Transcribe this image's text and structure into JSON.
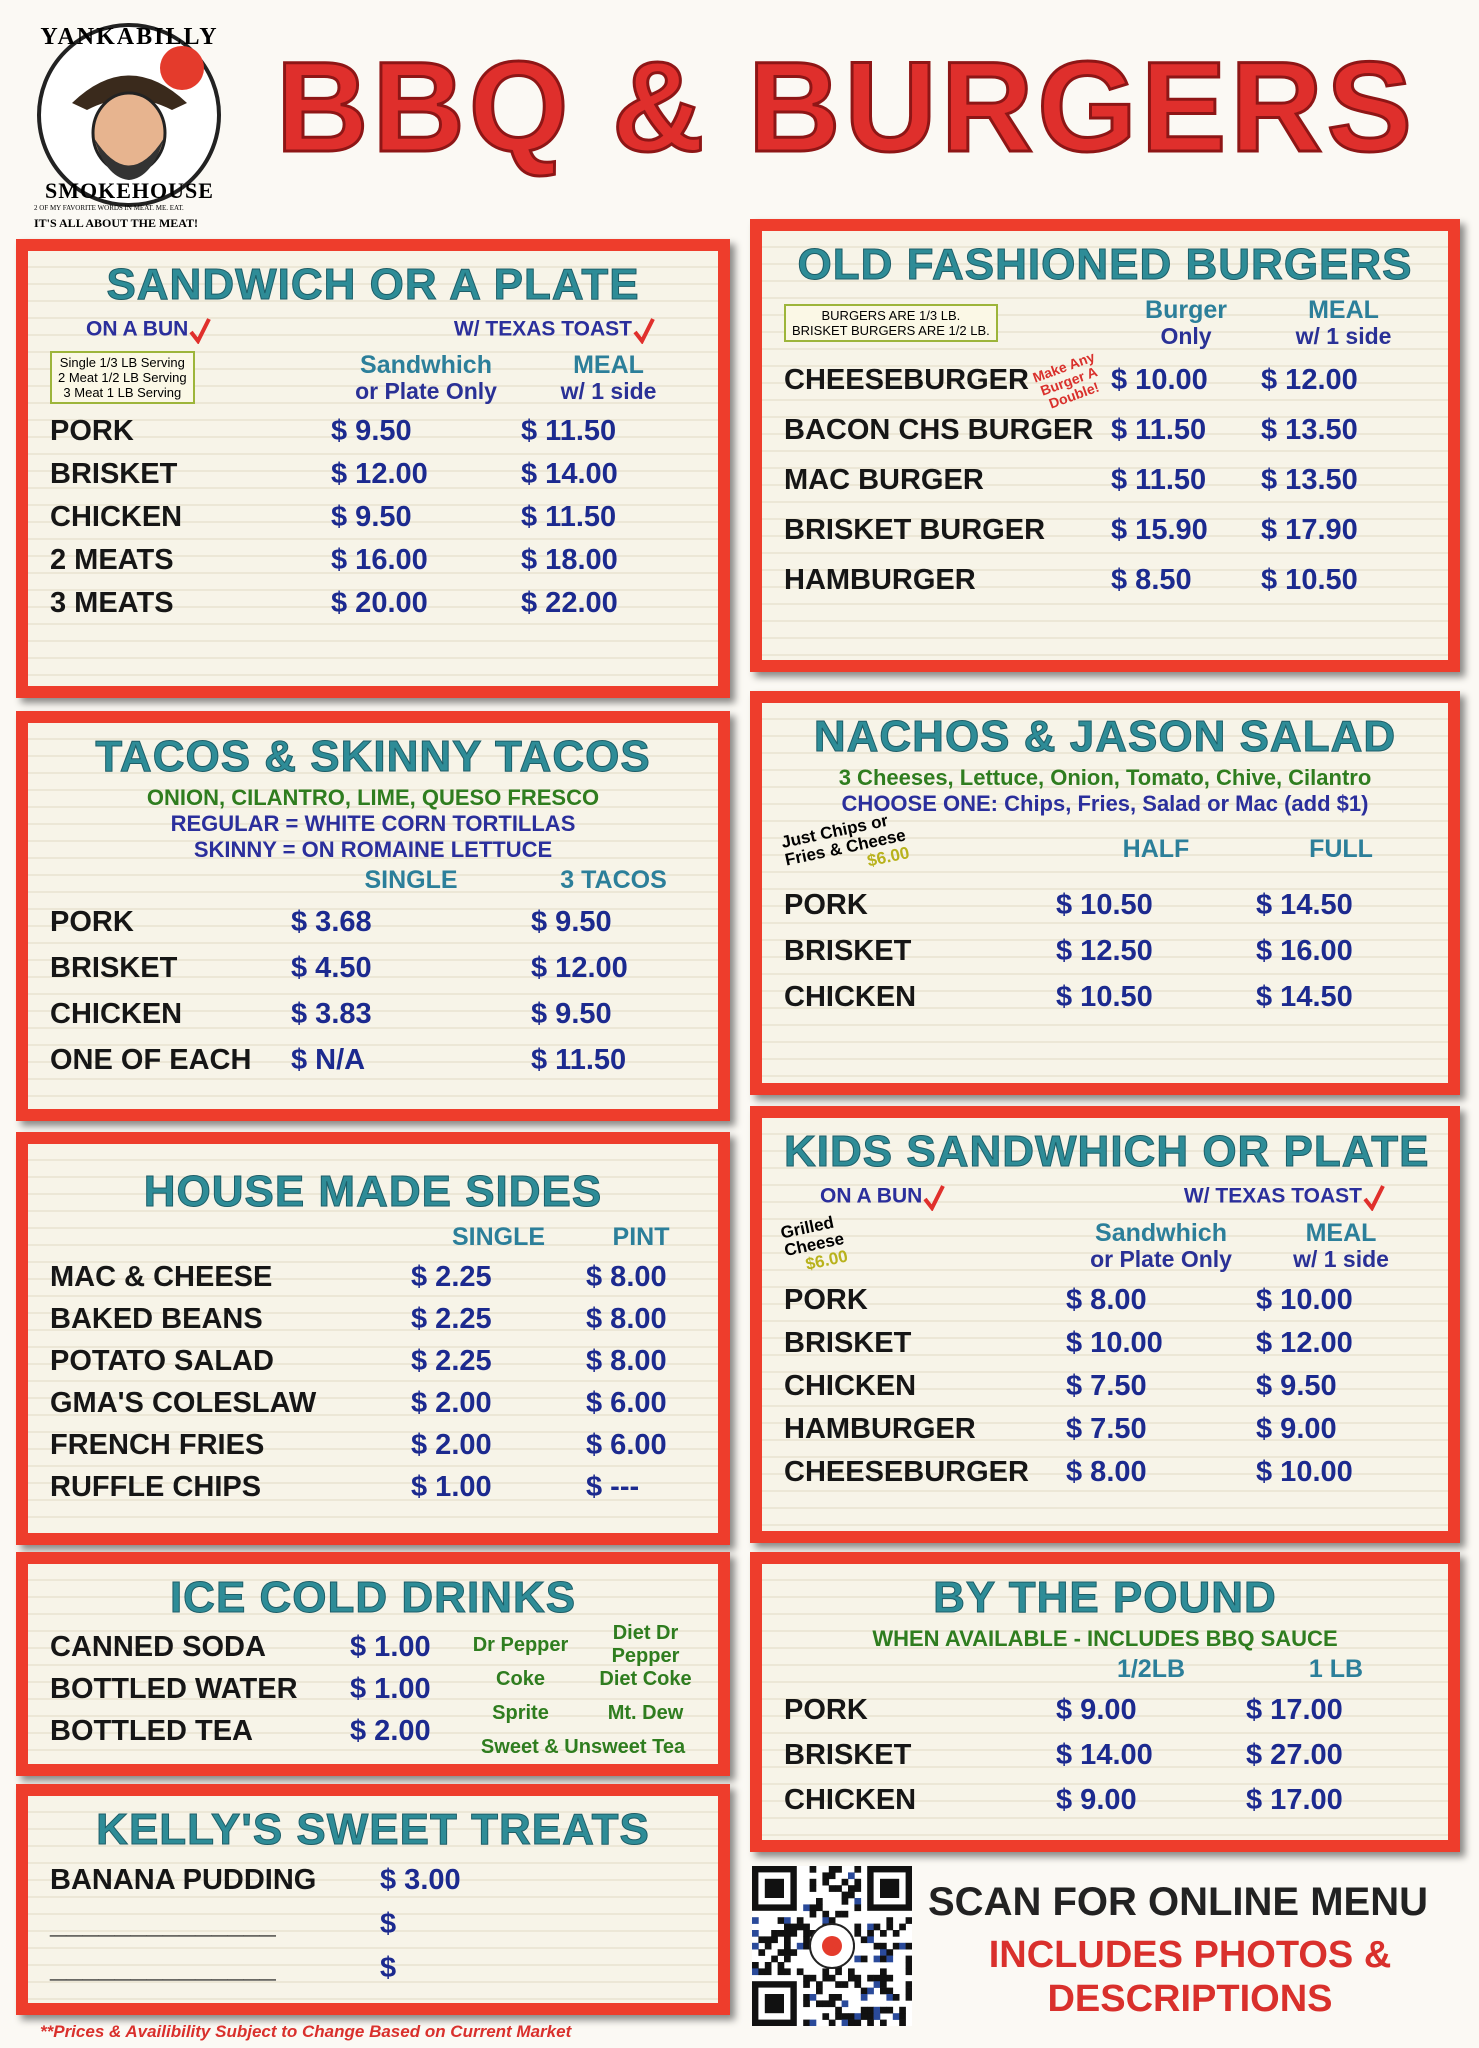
{
  "header": {
    "logo_top": "YANKABILLY",
    "logo_bottom": "SMOKEHOUSE",
    "logo_motto": "2 OF MY FAVORITE WORDS IN MEAT. ME. EAT.",
    "logo_tagline": "IT'S ALL ABOUT THE MEAT!",
    "title": "BBQ & BURGERS"
  },
  "sections": [
    {
      "title": "SANDWICH OR A PLATE",
      "tags": [
        "ON A BUN",
        "W/ TEXAS TOAST"
      ],
      "note": {
        "lines": [
          "Single 1/3 LB Serving",
          "2 Meat 1/2 LB Serving",
          "3 Meat 1 LB Serving"
        ]
      },
      "headers": [
        [
          "Sandwhich",
          "or Plate Only"
        ],
        [
          "MEAL",
          "w/ 1 side"
        ]
      ],
      "rows": [
        {
          "name": "PORK",
          "prices": [
            "$ 9.50",
            "$ 11.50"
          ]
        },
        {
          "name": "BRISKET",
          "prices": [
            "$ 12.00",
            "$ 14.00"
          ]
        },
        {
          "name": "CHICKEN",
          "prices": [
            "$ 9.50",
            "$ 11.50"
          ]
        },
        {
          "name": "2 MEATS",
          "prices": [
            "$ 16.00",
            "$ 18.00"
          ]
        },
        {
          "name": "3 MEATS",
          "prices": [
            "$ 20.00",
            "$ 22.00"
          ]
        }
      ]
    },
    {
      "title": "OLD FASHIONED BURGERS",
      "note": {
        "lines": [
          "BURGERS ARE 1/3 LB.",
          "BRISKET BURGERS ARE 1/2 LB."
        ]
      },
      "aside": "Make Any Burger A Double!",
      "headers": [
        [
          "Burger",
          "Only"
        ],
        [
          "MEAL",
          "w/ 1 side"
        ]
      ],
      "rows": [
        {
          "name": "CHEESEBURGER",
          "prices": [
            "$ 10.00",
            "$ 12.00"
          ]
        },
        {
          "name": "BACON CHS BURGER",
          "prices": [
            "$ 11.50",
            "$ 13.50"
          ]
        },
        {
          "name": "MAC BURGER",
          "prices": [
            "$ 11.50",
            "$ 13.50"
          ]
        },
        {
          "name": "BRISKET BURGER",
          "prices": [
            "$ 15.90",
            "$ 17.90"
          ]
        },
        {
          "name": "HAMBURGER",
          "prices": [
            "$ 8.50",
            "$ 10.50"
          ]
        }
      ]
    },
    {
      "title": "TACOS & SKINNY TACOS",
      "subtitles": [
        {
          "text": "ONION, CILANTRO, LIME, QUESO FRESCO",
          "color": "#2f7d1f"
        },
        {
          "text": "REGULAR = WHITE CORN TORTILLAS",
          "color": "#2b2f9c"
        },
        {
          "text": "SKINNY = ON ROMAINE LETTUCE",
          "color": "#2b2f9c"
        }
      ],
      "headers": [
        [
          "SINGLE"
        ],
        [
          "3 TACOS"
        ]
      ],
      "rows": [
        {
          "name": "PORK",
          "prices": [
            "$ 3.68",
            "$ 9.50"
          ]
        },
        {
          "name": "BRISKET",
          "prices": [
            "$ 4.50",
            "$ 12.00"
          ]
        },
        {
          "name": "CHICKEN",
          "prices": [
            "$ 3.83",
            "$ 9.50"
          ]
        },
        {
          "name": "ONE OF EACH",
          "prices": [
            "$ N/A",
            "$ 11.50"
          ]
        }
      ]
    },
    {
      "title": "NACHOS & JASON SALAD",
      "subtitles": [
        {
          "text": "3 Cheeses, Lettuce, Onion, Tomato, Chive, Cilantro",
          "color": "#2f7d1f"
        },
        {
          "text": "CHOOSE ONE: Chips, Fries, Salad or Mac (add $1)",
          "color": "#2b2f9c"
        }
      ],
      "note": {
        "lines": [
          "Just Chips or",
          "Fries & Cheese"
        ],
        "price": "$6.00"
      },
      "headers": [
        [
          "HALF"
        ],
        [
          "FULL"
        ]
      ],
      "rows": [
        {
          "name": "PORK",
          "prices": [
            "$ 10.50",
            "$ 14.50"
          ]
        },
        {
          "name": "BRISKET",
          "prices": [
            "$ 12.50",
            "$ 16.00"
          ]
        },
        {
          "name": "CHICKEN",
          "prices": [
            "$ 10.50",
            "$ 14.50"
          ]
        }
      ]
    },
    {
      "title": "HOUSE MADE SIDES",
      "headers": [
        [
          "SINGLE"
        ],
        [
          "PINT"
        ]
      ],
      "rows": [
        {
          "name": "MAC & CHEESE",
          "prices": [
            "$ 2.25",
            "$ 8.00"
          ]
        },
        {
          "name": "BAKED BEANS",
          "prices": [
            "$ 2.25",
            "$ 8.00"
          ]
        },
        {
          "name": "POTATO SALAD",
          "prices": [
            "$ 2.25",
            "$ 8.00"
          ]
        },
        {
          "name": "GMA'S COLESLAW",
          "prices": [
            "$ 2.00",
            "$ 6.00"
          ]
        },
        {
          "name": "FRENCH FRIES",
          "prices": [
            "$ 2.00",
            "$ 6.00"
          ]
        },
        {
          "name": "RUFFLE CHIPS",
          "prices": [
            "$ 1.00",
            "$ ---"
          ]
        }
      ]
    },
    {
      "title": "KIDS SANDWHICH OR PLATE",
      "tags": [
        "ON A BUN",
        "W/ TEXAS TOAST"
      ],
      "note": {
        "lines": [
          "Grilled",
          "Cheese"
        ],
        "price": "$6.00"
      },
      "headers": [
        [
          "Sandwhich",
          "or Plate Only"
        ],
        [
          "MEAL",
          "w/ 1 side"
        ]
      ],
      "rows": [
        {
          "name": "PORK",
          "prices": [
            "$ 8.00",
            "$ 10.00"
          ]
        },
        {
          "name": "BRISKET",
          "prices": [
            "$ 10.00",
            "$ 12.00"
          ]
        },
        {
          "name": "CHICKEN",
          "prices": [
            "$ 7.50",
            "$ 9.50"
          ]
        },
        {
          "name": "HAMBURGER",
          "prices": [
            "$ 7.50",
            "$ 9.00"
          ]
        },
        {
          "name": "CHEESEBURGER",
          "prices": [
            "$ 8.00",
            "$ 10.00"
          ]
        }
      ]
    },
    {
      "title": "ICE COLD DRINKS",
      "rows": [
        {
          "name": "CANNED SODA",
          "prices": [
            "$ 1.00"
          ]
        },
        {
          "name": "BOTTLED WATER",
          "prices": [
            "$ 1.00"
          ]
        },
        {
          "name": "BOTTLED TEA",
          "prices": [
            "$ 2.00"
          ]
        }
      ],
      "flavors": [
        "Dr Pepper",
        "Diet Dr Pepper",
        "Coke",
        "Diet Coke",
        "Sprite",
        "Mt. Dew",
        "Sweet & Unsweet Tea"
      ]
    },
    {
      "title": "BY THE POUND",
      "subtitles": [
        {
          "text": "WHEN AVAILABLE - INCLUDES BBQ SAUCE",
          "color": "#2f7d1f"
        }
      ],
      "headers": [
        [
          "1/2LB"
        ],
        [
          "1 LB"
        ]
      ],
      "rows": [
        {
          "name": "PORK",
          "prices": [
            "$ 9.00",
            "$ 17.00"
          ]
        },
        {
          "name": "BRISKET",
          "prices": [
            "$ 14.00",
            "$ 27.00"
          ]
        },
        {
          "name": "CHICKEN",
          "prices": [
            "$ 9.00",
            "$ 17.00"
          ]
        }
      ]
    },
    {
      "title": "KELLY'S SWEET TREATS",
      "rows": [
        {
          "name": "BANANA PUDDING",
          "prices": [
            "$ 3.00"
          ]
        },
        {
          "name": "______________",
          "prices": [
            "$"
          ]
        },
        {
          "name": "______________",
          "prices": [
            "$"
          ]
        }
      ]
    }
  ],
  "qr": {
    "scan": "SCAN FOR ONLINE MENU",
    "includes": [
      "INCLUDES PHOTOS &",
      "DESCRIPTIONS"
    ]
  },
  "footnote": "**Prices & Availibility Subject to Change Based on Current Market"
}
